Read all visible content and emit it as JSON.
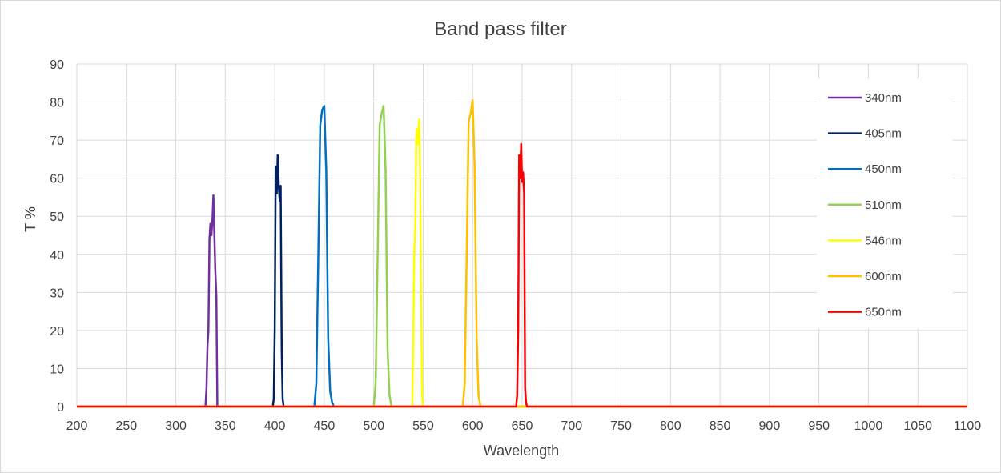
{
  "chart_data": {
    "type": "line",
    "title": "Band pass filter",
    "xlabel": "Wavelength",
    "ylabel": "T %",
    "xlim": [
      200,
      1100
    ],
    "ylim": [
      0,
      90
    ],
    "xticks": [
      200,
      250,
      300,
      350,
      400,
      450,
      500,
      550,
      600,
      650,
      700,
      750,
      800,
      850,
      900,
      950,
      1000,
      1050,
      1100
    ],
    "yticks": [
      0,
      10,
      20,
      30,
      40,
      50,
      60,
      70,
      80,
      90
    ],
    "grid": true,
    "legend_position": "right",
    "series": [
      {
        "name": "340nm",
        "color": "#7030a0",
        "x": [
          200,
          330,
          331,
          332,
          333,
          334,
          335,
          336,
          337,
          338,
          339,
          340,
          341,
          342,
          343,
          344,
          1100
        ],
        "y": [
          0,
          0,
          5,
          16,
          20,
          44,
          48,
          45,
          49,
          55.5,
          45,
          35,
          29,
          0,
          0,
          0,
          0
        ]
      },
      {
        "name": "405nm",
        "color": "#002060",
        "x": [
          200,
          398,
          399,
          400,
          401,
          402,
          403,
          404,
          405,
          406,
          407,
          408,
          409,
          410,
          1100
        ],
        "y": [
          0,
          0,
          2,
          20,
          63,
          56,
          66,
          58,
          54,
          58,
          15,
          2,
          0,
          0,
          0
        ]
      },
      {
        "name": "450nm",
        "color": "#0070c0",
        "x": [
          200,
          440,
          442,
          444,
          446,
          448,
          450,
          452,
          454,
          456,
          458,
          460,
          1100
        ],
        "y": [
          0,
          0,
          6,
          40,
          74,
          78,
          79,
          62,
          18,
          4,
          1,
          0,
          0
        ]
      },
      {
        "name": "510nm",
        "color": "#92d050",
        "x": [
          200,
          500,
          502,
          504,
          506,
          508,
          510,
          512,
          514,
          516,
          518,
          1100
        ],
        "y": [
          0,
          0,
          6,
          40,
          74,
          77,
          79,
          62,
          15,
          3,
          0,
          0
        ]
      },
      {
        "name": "546nm",
        "color": "#ffff00",
        "x": [
          200,
          539,
          540,
          541,
          542,
          543,
          544,
          545,
          546,
          547,
          548,
          549,
          550,
          1100
        ],
        "y": [
          0,
          0,
          18,
          40,
          47,
          70,
          73,
          69,
          75.5,
          60,
          25,
          3,
          0,
          0
        ]
      },
      {
        "name": "600nm",
        "color": "#ffc000",
        "x": [
          200,
          590,
          592,
          594,
          596,
          598,
          600,
          602,
          604,
          606,
          608,
          1100
        ],
        "y": [
          0,
          0,
          6,
          40,
          75,
          77,
          80.5,
          63,
          18,
          3,
          0,
          0
        ]
      },
      {
        "name": "650nm",
        "color": "#ff0000",
        "x": [
          200,
          644,
          645,
          646,
          647,
          648,
          649,
          650,
          651,
          652,
          653,
          654,
          655,
          1100
        ],
        "y": [
          0,
          0,
          3,
          20,
          66,
          60,
          69,
          59,
          61.5,
          56,
          5,
          1,
          0,
          0
        ]
      }
    ]
  }
}
